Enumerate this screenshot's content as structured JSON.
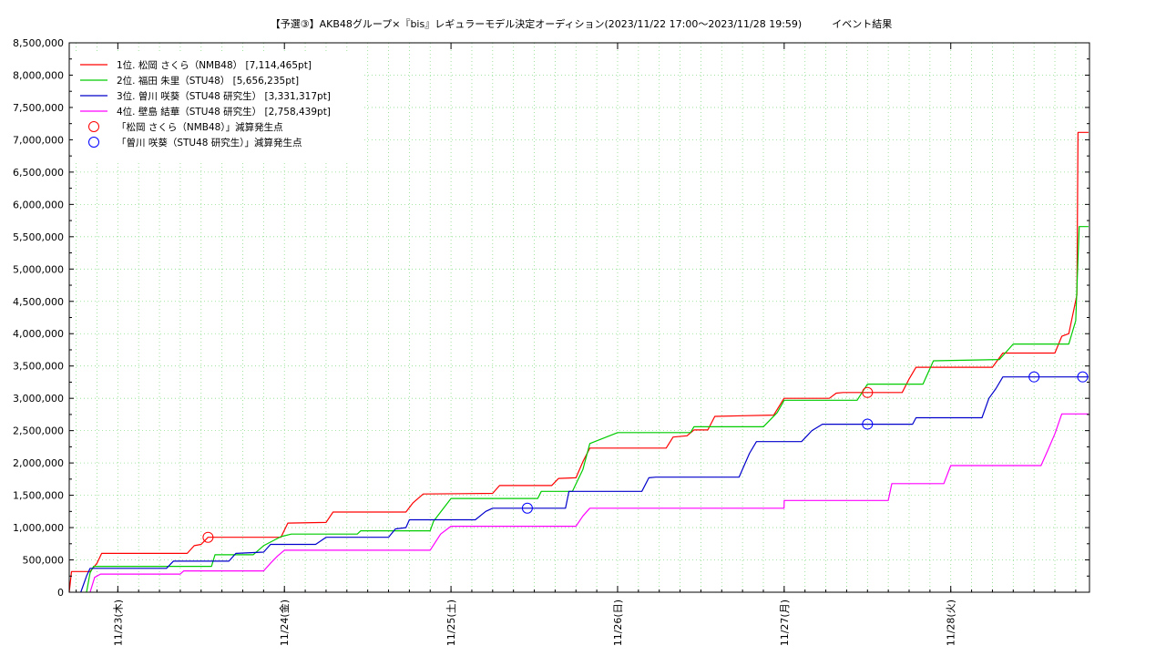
{
  "chart_data": {
    "type": "line",
    "title": "【予選③】AKB48グループ×『bis』レギュラーモデル決定オーディション(2023/11/22 17:00〜2023/11/28 19:59)　　　イベント結果",
    "xlabel": "",
    "ylabel": "",
    "ylim": [
      0,
      8500000
    ],
    "xlim": [
      "2023/11/22 17:00",
      "2023/11/28 19:59"
    ],
    "grid": true,
    "legend_position": "top-left",
    "y_ticks": [
      "0",
      "500,000",
      "1,000,000",
      "1,500,000",
      "2,000,000",
      "2,500,000",
      "3,000,000",
      "3,500,000",
      "4,000,000",
      "4,500,000",
      "5,000,000",
      "5,500,000",
      "6,000,000",
      "6,500,000",
      "7,000,000",
      "7,500,000",
      "8,000,000",
      "8,500,000"
    ],
    "x_ticks": [
      {
        "label": "11/23(木)",
        "t": "2023/11/23 00:00"
      },
      {
        "label": "11/24(金)",
        "t": "2023/11/24 00:00"
      },
      {
        "label": "11/25(土)",
        "t": "2023/11/25 00:00"
      },
      {
        "label": "11/26(日)",
        "t": "2023/11/26 00:00"
      },
      {
        "label": "11/27(月)",
        "t": "2023/11/27 00:00"
      },
      {
        "label": "11/28(火)",
        "t": "2023/11/28 00:00"
      }
    ],
    "series": [
      {
        "name": "1位. 松岡 さくら（NMB48） [7,114,465pt]",
        "color": "#ff0000",
        "points": [
          [
            "2023/11/22 17:00",
            0
          ],
          [
            "2023/11/22 17:20",
            320000
          ],
          [
            "2023/11/22 17:40",
            320000
          ],
          [
            "2023/11/22 20:00",
            320000
          ],
          [
            "2023/11/22 21:00",
            450000
          ],
          [
            "2023/11/22 21:40",
            600000
          ],
          [
            "2023/11/23 10:00",
            600000
          ],
          [
            "2023/11/23 11:00",
            720000
          ],
          [
            "2023/11/23 12:00",
            740000
          ],
          [
            "2023/11/23 13:00",
            850000
          ],
          [
            "2023/11/23 23:30",
            850000
          ],
          [
            "2023/11/24 00:30",
            1070000
          ],
          [
            "2023/11/24 06:00",
            1080000
          ],
          [
            "2023/11/24 07:00",
            1240000
          ],
          [
            "2023/11/24 17:30",
            1240000
          ],
          [
            "2023/11/24 18:30",
            1380000
          ],
          [
            "2023/11/24 20:00",
            1520000
          ],
          [
            "2023/11/25 06:00",
            1530000
          ],
          [
            "2023/11/25 07:00",
            1650000
          ],
          [
            "2023/11/25 14:30",
            1650000
          ],
          [
            "2023/11/25 15:30",
            1760000
          ],
          [
            "2023/11/25 18:00",
            1770000
          ],
          [
            "2023/11/25 19:00",
            2020000
          ],
          [
            "2023/11/25 20:00",
            2230000
          ],
          [
            "2023/11/26 07:00",
            2230000
          ],
          [
            "2023/11/26 08:00",
            2400000
          ],
          [
            "2023/11/26 10:00",
            2420000
          ],
          [
            "2023/11/26 11:00",
            2510000
          ],
          [
            "2023/11/26 13:00",
            2510000
          ],
          [
            "2023/11/26 14:00",
            2720000
          ],
          [
            "2023/11/26 18:00",
            2730000
          ],
          [
            "2023/11/26 22:30",
            2740000
          ],
          [
            "2023/11/26 23:59",
            3000000
          ],
          [
            "2023/11/27 06:30",
            3000000
          ],
          [
            "2023/11/27 07:30",
            3080000
          ],
          [
            "2023/11/27 08:30",
            3090000
          ],
          [
            "2023/11/27 17:00",
            3090000
          ],
          [
            "2023/11/27 18:00",
            3300000
          ],
          [
            "2023/11/27 19:00",
            3480000
          ],
          [
            "2023/11/28 06:00",
            3480000
          ],
          [
            "2023/11/28 07:30",
            3700000
          ],
          [
            "2023/11/28 15:00",
            3700000
          ],
          [
            "2023/11/28 16:00",
            3960000
          ],
          [
            "2023/11/28 17:00",
            4000000
          ],
          [
            "2023/11/28 18:10",
            4600000
          ],
          [
            "2023/11/28 18:20",
            7114465
          ],
          [
            "2023/11/28 19:50",
            7114465
          ]
        ]
      },
      {
        "name": "2位. 福田 朱里（STU48） [5,656,235pt]",
        "color": "#00cc00",
        "points": [
          [
            "2023/11/22 19:30",
            0
          ],
          [
            "2023/11/22 20:00",
            300000
          ],
          [
            "2023/11/22 20:30",
            400000
          ],
          [
            "2023/11/23 13:30",
            400000
          ],
          [
            "2023/11/23 14:00",
            580000
          ],
          [
            "2023/11/23 19:30",
            580000
          ],
          [
            "2023/11/23 21:00",
            720000
          ],
          [
            "2023/11/23 23:30",
            860000
          ],
          [
            "2023/11/24 01:00",
            900000
          ],
          [
            "2023/11/24 10:30",
            900000
          ],
          [
            "2023/11/24 11:00",
            950000
          ],
          [
            "2023/11/24 21:00",
            950000
          ],
          [
            "2023/11/24 21:30",
            1100000
          ],
          [
            "2023/11/25 00:00",
            1450000
          ],
          [
            "2023/11/25 12:30",
            1450000
          ],
          [
            "2023/11/25 13:00",
            1560000
          ],
          [
            "2023/11/25 17:30",
            1560000
          ],
          [
            "2023/11/25 19:00",
            1900000
          ],
          [
            "2023/11/25 20:00",
            2300000
          ],
          [
            "2023/11/26 00:00",
            2470000
          ],
          [
            "2023/11/26 10:30",
            2470000
          ],
          [
            "2023/11/26 11:00",
            2560000
          ],
          [
            "2023/11/26 21:00",
            2560000
          ],
          [
            "2023/11/26 23:00",
            2780000
          ],
          [
            "2023/11/27 00:00",
            2970000
          ],
          [
            "2023/11/27 10:30",
            2970000
          ],
          [
            "2023/11/27 12:00",
            3220000
          ],
          [
            "2023/11/27 20:00",
            3220000
          ],
          [
            "2023/11/27 21:30",
            3580000
          ],
          [
            "2023/11/28 07:00",
            3600000
          ],
          [
            "2023/11/28 08:00",
            3720000
          ],
          [
            "2023/11/28 09:00",
            3840000
          ],
          [
            "2023/11/28 17:00",
            3840000
          ],
          [
            "2023/11/28 18:00",
            4200000
          ],
          [
            "2023/11/28 18:30",
            5656235
          ],
          [
            "2023/11/28 19:50",
            5656235
          ]
        ]
      },
      {
        "name": "3位. 曽川 咲葵（STU48 研究生） [3,331,317pt]",
        "color": "#0000cc",
        "points": [
          [
            "2023/11/22 18:40",
            0
          ],
          [
            "2023/11/22 19:30",
            250000
          ],
          [
            "2023/11/22 20:00",
            370000
          ],
          [
            "2023/11/23 07:00",
            370000
          ],
          [
            "2023/11/23 08:00",
            480000
          ],
          [
            "2023/11/23 16:00",
            480000
          ],
          [
            "2023/11/23 17:00",
            600000
          ],
          [
            "2023/11/23 21:00",
            620000
          ],
          [
            "2023/11/23 22:00",
            740000
          ],
          [
            "2023/11/24 04:30",
            740000
          ],
          [
            "2023/11/24 06:00",
            850000
          ],
          [
            "2023/11/24 15:00",
            850000
          ],
          [
            "2023/11/24 16:00",
            980000
          ],
          [
            "2023/11/24 17:30",
            1000000
          ],
          [
            "2023/11/24 18:00",
            1120000
          ],
          [
            "2023/11/25 03:30",
            1120000
          ],
          [
            "2023/11/25 05:00",
            1250000
          ],
          [
            "2023/11/25 06:00",
            1300000
          ],
          [
            "2023/11/25 16:30",
            1300000
          ],
          [
            "2023/11/25 17:00",
            1560000
          ],
          [
            "2023/11/26 03:30",
            1560000
          ],
          [
            "2023/11/26 04:30",
            1770000
          ],
          [
            "2023/11/26 05:30",
            1780000
          ],
          [
            "2023/11/26 17:30",
            1780000
          ],
          [
            "2023/11/26 19:00",
            2150000
          ],
          [
            "2023/11/26 20:00",
            2330000
          ],
          [
            "2023/11/27 02:30",
            2330000
          ],
          [
            "2023/11/27 04:00",
            2500000
          ],
          [
            "2023/11/27 05:30",
            2600000
          ],
          [
            "2023/11/27 18:30",
            2600000
          ],
          [
            "2023/11/27 19:00",
            2700000
          ],
          [
            "2023/11/28 04:30",
            2700000
          ],
          [
            "2023/11/28 05:30",
            3000000
          ],
          [
            "2023/11/28 06:30",
            3150000
          ],
          [
            "2023/11/28 07:30",
            3331317
          ],
          [
            "2023/11/28 19:50",
            3331317
          ]
        ]
      },
      {
        "name": "4位. 壁島 結華（STU48 研究生） [2,758,439pt]",
        "color": "#ff00ff",
        "points": [
          [
            "2023/11/22 20:00",
            0
          ],
          [
            "2023/11/22 20:40",
            230000
          ],
          [
            "2023/11/22 21:30",
            280000
          ],
          [
            "2023/11/23 09:00",
            280000
          ],
          [
            "2023/11/23 09:30",
            330000
          ],
          [
            "2023/11/23 21:00",
            330000
          ],
          [
            "2023/11/23 22:00",
            450000
          ],
          [
            "2023/11/23 23:00",
            560000
          ],
          [
            "2023/11/24 00:00",
            650000
          ],
          [
            "2023/11/24 21:00",
            650000
          ],
          [
            "2023/11/24 22:30",
            900000
          ],
          [
            "2023/11/24 23:59",
            1020000
          ],
          [
            "2023/11/25 18:00",
            1020000
          ],
          [
            "2023/11/25 19:00",
            1180000
          ],
          [
            "2023/11/25 20:00",
            1300000
          ],
          [
            "2023/11/26 23:59",
            1300000
          ],
          [
            "2023/11/27 00:00",
            1420000
          ],
          [
            "2023/11/27 15:00",
            1420000
          ],
          [
            "2023/11/27 15:30",
            1680000
          ],
          [
            "2023/11/27 23:00",
            1680000
          ],
          [
            "2023/11/28 00:00",
            1960000
          ],
          [
            "2023/11/28 13:00",
            1960000
          ],
          [
            "2023/11/28 14:00",
            2200000
          ],
          [
            "2023/11/28 15:00",
            2450000
          ],
          [
            "2023/11/28 16:00",
            2758439
          ],
          [
            "2023/11/28 19:50",
            2758439
          ]
        ]
      }
    ],
    "markers": [
      {
        "name": "「松岡 さくら（NMB48）」減算発生点",
        "color": "#ff0000",
        "points": [
          [
            "2023/11/23 13:00",
            850000
          ],
          [
            "2023/11/27 12:00",
            3090000
          ]
        ]
      },
      {
        "name": "「曽川 咲葵（STU48 研究生）」減算発生点",
        "color": "#0000ff",
        "points": [
          [
            "2023/11/25 11:00",
            1300000
          ],
          [
            "2023/11/27 12:00",
            2600000
          ],
          [
            "2023/11/28 12:00",
            3331317
          ],
          [
            "2023/11/28 19:00",
            3331317
          ]
        ]
      }
    ]
  }
}
